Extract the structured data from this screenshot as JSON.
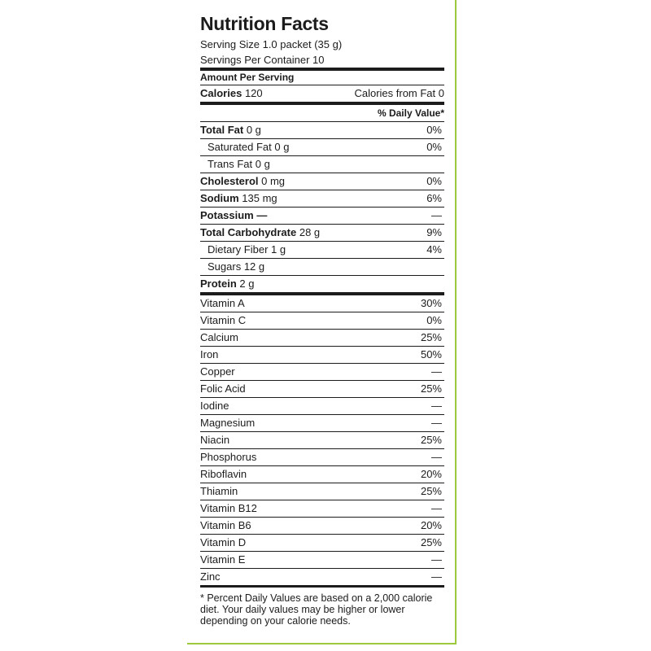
{
  "title": "Nutrition Facts",
  "serving_size": "Serving Size 1.0 packet (35 g)",
  "servings_per_container": "Servings Per Container 10",
  "amount_per_serving": "Amount Per Serving",
  "calories": {
    "label": "Calories",
    "value": "120"
  },
  "calories_from_fat": "Calories from Fat 0",
  "daily_value_header": "% Daily Value*",
  "nutrients": [
    {
      "label": "Total Fat",
      "amount": "0 g",
      "dv": "0%"
    },
    {
      "label": "Saturated Fat",
      "amount": "0 g",
      "dv": "0%"
    },
    {
      "label": "Trans Fat",
      "amount": "0 g",
      "dv": ""
    },
    {
      "label": "Cholesterol",
      "amount": "0 mg",
      "dv": "0%"
    },
    {
      "label": "Sodium",
      "amount": "135 mg",
      "dv": "6%"
    },
    {
      "label": "Potassium",
      "amount": "—",
      "dv": "—"
    },
    {
      "label": "Total Carbohydrate",
      "amount": "28 g",
      "dv": "9%"
    },
    {
      "label": "Dietary Fiber",
      "amount": "1 g",
      "dv": "4%"
    },
    {
      "label": "Sugars",
      "amount": "12 g",
      "dv": ""
    },
    {
      "label": "Protein",
      "amount": "2 g",
      "dv": ""
    }
  ],
  "vitamins": [
    {
      "label": "Vitamin A",
      "dv": "30%"
    },
    {
      "label": "Vitamin C",
      "dv": "0%"
    },
    {
      "label": "Calcium",
      "dv": "25%"
    },
    {
      "label": "Iron",
      "dv": "50%"
    },
    {
      "label": "Copper",
      "dv": "—"
    },
    {
      "label": "Folic Acid",
      "dv": "25%"
    },
    {
      "label": "Iodine",
      "dv": "—"
    },
    {
      "label": "Magnesium",
      "dv": "—"
    },
    {
      "label": "Niacin",
      "dv": "25%"
    },
    {
      "label": "Phosphorus",
      "dv": "—"
    },
    {
      "label": "Riboflavin",
      "dv": "20%"
    },
    {
      "label": "Thiamin",
      "dv": "25%"
    },
    {
      "label": "Vitamin B12",
      "dv": "—"
    },
    {
      "label": "Vitamin B6",
      "dv": "20%"
    },
    {
      "label": "Vitamin D",
      "dv": "25%"
    },
    {
      "label": "Vitamin E",
      "dv": "—"
    },
    {
      "label": "Zinc",
      "dv": "—"
    }
  ],
  "footnote": "* Percent Daily Values are based on a 2,000 calorie diet. Your daily values may be higher or lower depending on your calorie needs.",
  "colors": {
    "frame": "#9dc93c",
    "text": "#1c1c1c"
  }
}
